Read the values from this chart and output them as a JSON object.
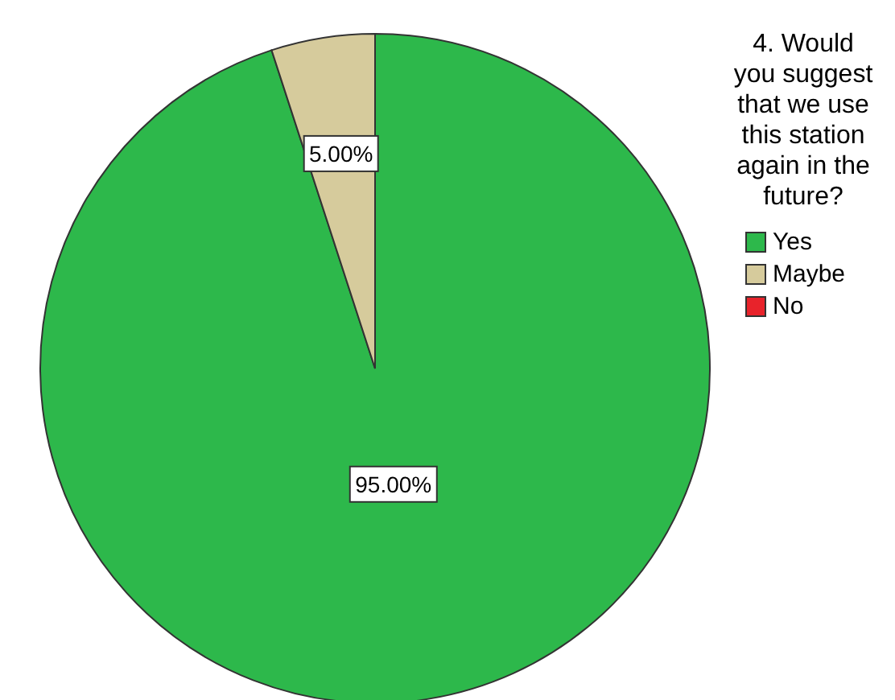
{
  "chart_data": {
    "type": "pie",
    "legend_title": "4. Would you suggest that we use this station again in the future?",
    "categories": [
      "Yes",
      "Maybe",
      "No"
    ],
    "values": [
      95,
      5,
      0
    ],
    "colors": [
      "#2db84b",
      "#d6cb9c",
      "#e8232b"
    ],
    "value_labels": [
      "95.00%",
      "5.00%",
      null
    ],
    "legend": "right"
  }
}
